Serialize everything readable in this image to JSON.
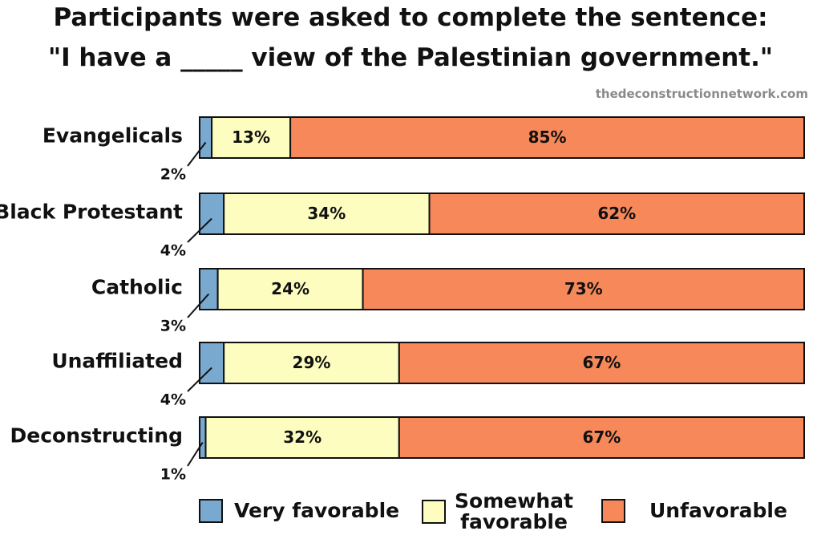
{
  "title_line1": "Participants were asked to complete the sentence:",
  "title_line2": "\"I have a _____ view of the Palestinian government.\"",
  "source": "thedeconstructionnetwork.com",
  "colors": {
    "very": "#79a9cf",
    "somewhat": "#fdfdc0",
    "unfavorable": "#f7885a"
  },
  "chart_data": {
    "type": "bar",
    "orientation": "horizontal",
    "stacked": true,
    "title": "Participants were asked to complete the sentence: \"I have a _____ view of the Palestinian government.\"",
    "categories": [
      "Evangelicals",
      "Black Protestant",
      "Catholic",
      "Unaffiliated",
      "Deconstructing"
    ],
    "series": [
      {
        "name": "Very favorable",
        "values": [
          2,
          4,
          3,
          4,
          1
        ],
        "labels": [
          "2%",
          "4%",
          "3%",
          "4%",
          "1%"
        ]
      },
      {
        "name": "Somewhat favorable",
        "values": [
          13,
          34,
          24,
          29,
          32
        ],
        "labels": [
          "13%",
          "34%",
          "24%",
          "29%",
          "32%"
        ]
      },
      {
        "name": "Unfavorable",
        "values": [
          85,
          62,
          73,
          67,
          67
        ],
        "labels": [
          "85%",
          "62%",
          "73%",
          "67%",
          "67%"
        ]
      }
    ],
    "xlim": [
      0,
      100
    ],
    "grid": false,
    "legend": "bottom"
  }
}
